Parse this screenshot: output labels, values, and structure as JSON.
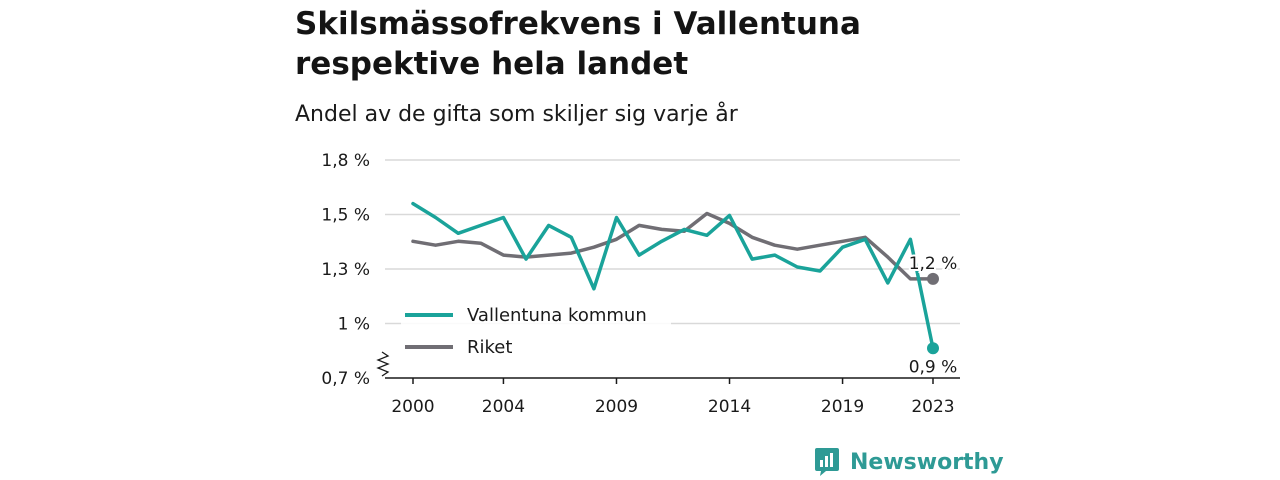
{
  "title": "Skilsmässofrekvens i Vallentuna respektive hela landet",
  "subtitle": "Andel av de gifta som skiljer sig varje år",
  "brand": "Newsworthy",
  "colors": {
    "vallentuna": "#1aa39a",
    "riket": "#706e74",
    "grid": "#d9d9d9",
    "brand": "#2e9a95"
  },
  "chart_data": {
    "type": "line",
    "x": [
      2000,
      2001,
      2002,
      2003,
      2004,
      2005,
      2006,
      2007,
      2008,
      2009,
      2010,
      2011,
      2012,
      2013,
      2014,
      2015,
      2016,
      2017,
      2018,
      2019,
      2020,
      2021,
      2022,
      2023
    ],
    "x_tick_labels": [
      "2000",
      "2004",
      "2009",
      "2014",
      "2019",
      "2023"
    ],
    "y_tick_labels": [
      "1,8 %",
      "1,5 %",
      "1,3 %",
      "1 %",
      "0,7 %"
    ],
    "ylim": [
      0.7,
      1.8
    ],
    "series": [
      {
        "name": "Vallentuna kommun",
        "color": "#1aa39a",
        "values": [
          1.58,
          1.51,
          1.43,
          1.47,
          1.51,
          1.3,
          1.47,
          1.41,
          1.15,
          1.51,
          1.32,
          1.39,
          1.45,
          1.42,
          1.52,
          1.3,
          1.32,
          1.26,
          1.24,
          1.36,
          1.4,
          1.18,
          1.4,
          0.85
        ]
      },
      {
        "name": "Riket",
        "color": "#706e74",
        "values": [
          1.39,
          1.37,
          1.39,
          1.38,
          1.32,
          1.31,
          1.32,
          1.33,
          1.36,
          1.4,
          1.47,
          1.45,
          1.44,
          1.53,
          1.48,
          1.41,
          1.37,
          1.35,
          1.37,
          1.39,
          1.41,
          1.31,
          1.2,
          1.2
        ]
      }
    ],
    "end_labels": [
      "0,9 %",
      "1,2 %"
    ],
    "legend_position": "lower-left",
    "grid": true
  }
}
